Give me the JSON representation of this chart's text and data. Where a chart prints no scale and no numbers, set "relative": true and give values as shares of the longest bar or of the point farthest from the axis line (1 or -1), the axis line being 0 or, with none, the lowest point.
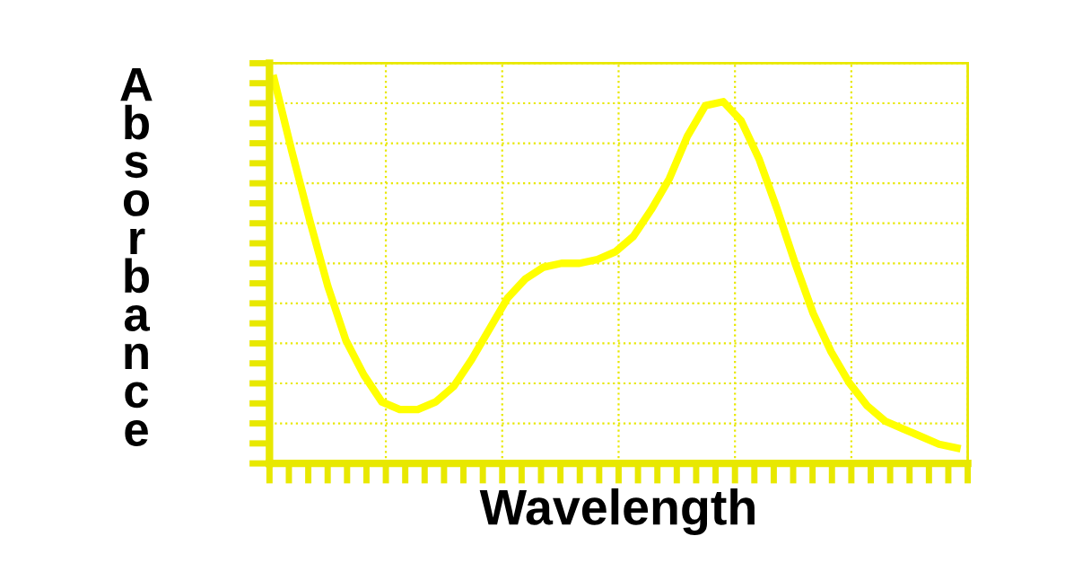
{
  "chart_data": {
    "type": "line",
    "xlabel": "Wavelength",
    "ylabel": "Absorbance",
    "relative": true,
    "grid": true,
    "tick_labels": false,
    "marker": "none",
    "line_style": "solid",
    "categories": [
      null,
      null,
      null,
      null,
      null,
      null,
      null,
      null,
      null,
      null,
      null,
      null,
      null,
      null,
      null,
      null,
      null,
      null,
      null,
      null,
      null,
      null,
      null,
      null,
      null,
      null,
      null,
      null,
      null,
      null,
      null,
      null,
      null,
      null,
      null,
      null,
      null,
      null,
      null
    ],
    "series": [
      {
        "color": "#ffff00",
        "values": [
          1.0,
          0.81,
          0.63,
          0.46,
          0.32,
          0.23,
          0.16,
          0.14,
          0.14,
          0.16,
          0.2,
          0.27,
          0.35,
          0.43,
          0.48,
          0.51,
          0.52,
          0.52,
          0.53,
          0.55,
          0.59,
          0.66,
          0.74,
          0.85,
          0.93,
          0.94,
          0.89,
          0.79,
          0.66,
          0.52,
          0.39,
          0.29,
          0.21,
          0.15,
          0.11,
          0.09,
          0.07,
          0.05,
          0.04
        ]
      }
    ]
  }
}
